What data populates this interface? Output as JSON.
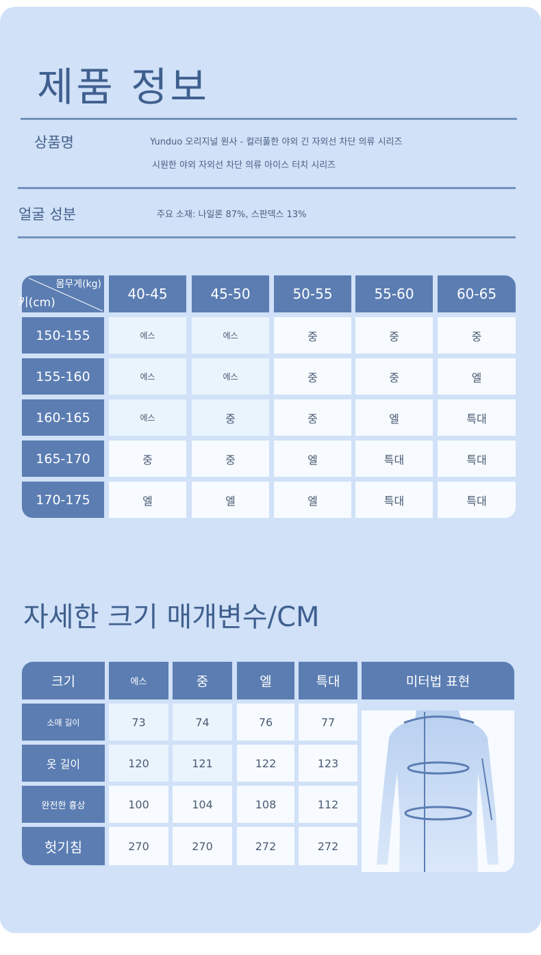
{
  "product_info": {
    "title": "제품 정보",
    "product_name_label": "상품명",
    "product_name_line1": "Yunduo 오리지널 원사 - 컬러풀한 야외 긴 자외선 차단 의류 시리즈",
    "product_name_line2": "시원한 야외 자외선 차단 의류 아이스 터치 시리즈",
    "material_label": "얼굴 성분",
    "material_value": "주요 소재: 나일론 87%, 스판덱스 13%"
  },
  "size_chart": {
    "corner_weight": "몸무게(kg)",
    "corner_height": "키(cm)",
    "weight_columns": [
      "40-45",
      "45-50",
      "50-55",
      "55-60",
      "60-65"
    ],
    "rows": [
      {
        "height": "150-155",
        "sizes": [
          "에스",
          "에스",
          "중",
          "중",
          "중"
        ]
      },
      {
        "height": "155-160",
        "sizes": [
          "에스",
          "에스",
          "중",
          "중",
          "엘"
        ]
      },
      {
        "height": "160-165",
        "sizes": [
          "에스",
          "중",
          "중",
          "엘",
          "특대"
        ]
      },
      {
        "height": "165-170",
        "sizes": [
          "중",
          "중",
          "엘",
          "특대",
          "특대"
        ]
      },
      {
        "height": "170-175",
        "sizes": [
          "엘",
          "엘",
          "엘",
          "특대",
          "특대"
        ]
      }
    ]
  },
  "detail": {
    "title": "자세한 크기 매개변수/CM",
    "header_label": "크기",
    "sizes": [
      "에스",
      "중",
      "엘",
      "특대"
    ],
    "figure_header": "미터법 표현",
    "rows": [
      {
        "label": "소매 길이",
        "values": [
          "73",
          "74",
          "76",
          "77"
        ]
      },
      {
        "label": "옷 길이",
        "values": [
          "120",
          "121",
          "122",
          "123"
        ]
      },
      {
        "label": "완전한 흉상",
        "values": [
          "100",
          "104",
          "108",
          "112"
        ]
      },
      {
        "label": "헛기침",
        "values": [
          "270",
          "270",
          "272",
          "272"
        ]
      }
    ]
  },
  "colors": {
    "background": "#d0e1f8",
    "header_cell": "#5b7db2",
    "body_cell": "#f7fbff",
    "text": "#3f5f8e"
  }
}
